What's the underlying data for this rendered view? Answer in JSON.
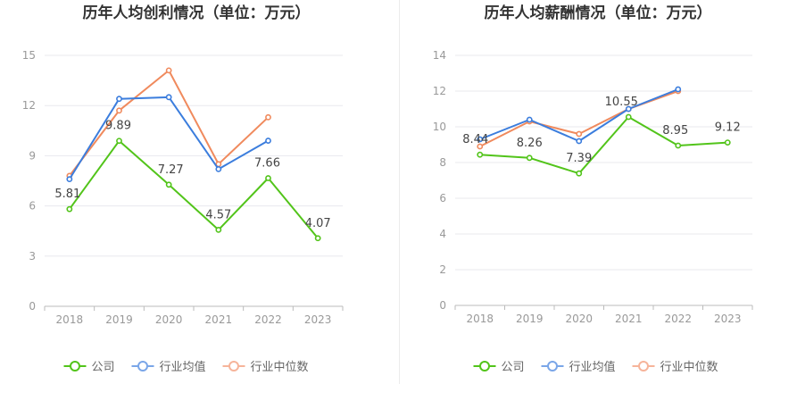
{
  "chart_data": [
    {
      "type": "line",
      "title": "历年人均创利情况（单位：万元）",
      "categories": [
        "2018",
        "2019",
        "2020",
        "2021",
        "2022",
        "2023"
      ],
      "ylim": [
        0,
        15
      ],
      "yticks": [
        0,
        3,
        6,
        9,
        12,
        15
      ],
      "grid": true,
      "legend_position": "bottom",
      "series": [
        {
          "name": "公司",
          "color": "#52c41a",
          "values": [
            5.81,
            9.89,
            7.27,
            4.57,
            7.66,
            4.07
          ],
          "labels": [
            "5.81",
            "9.89",
            "7.27",
            "4.57",
            "7.66",
            "4.07"
          ]
        },
        {
          "name": "行业均值",
          "color": "#3b7ddd",
          "values": [
            7.6,
            12.4,
            12.5,
            8.2,
            9.9,
            null
          ]
        },
        {
          "name": "行业中位数",
          "color": "#f08a5d",
          "values": [
            7.8,
            11.7,
            14.1,
            8.5,
            11.3,
            null
          ]
        }
      ]
    },
    {
      "type": "line",
      "title": "历年人均薪酬情况（单位：万元）",
      "categories": [
        "2018",
        "2019",
        "2020",
        "2021",
        "2022",
        "2023"
      ],
      "ylim": [
        0,
        14
      ],
      "yticks": [
        0,
        2,
        4,
        6,
        8,
        10,
        12,
        14
      ],
      "grid": true,
      "legend_position": "bottom",
      "series": [
        {
          "name": "公司",
          "color": "#52c41a",
          "values": [
            8.44,
            8.26,
            7.39,
            10.55,
            8.95,
            9.12
          ],
          "labels": [
            "8.44",
            "8.26",
            "7.39",
            "10.55",
            "8.95",
            "9.12"
          ]
        },
        {
          "name": "行业均值",
          "color": "#3b7ddd",
          "values": [
            9.3,
            10.4,
            9.2,
            11.0,
            12.1,
            null
          ]
        },
        {
          "name": "行业中位数",
          "color": "#f08a5d",
          "values": [
            8.9,
            10.3,
            9.6,
            11.0,
            12.0,
            null
          ]
        }
      ]
    }
  ],
  "legend": {
    "items": [
      {
        "label": "公司",
        "color": "#52c41a"
      },
      {
        "label": "行业均值",
        "color": "#7aa6e8"
      },
      {
        "label": "行业中位数",
        "color": "#f6b49a"
      }
    ]
  }
}
